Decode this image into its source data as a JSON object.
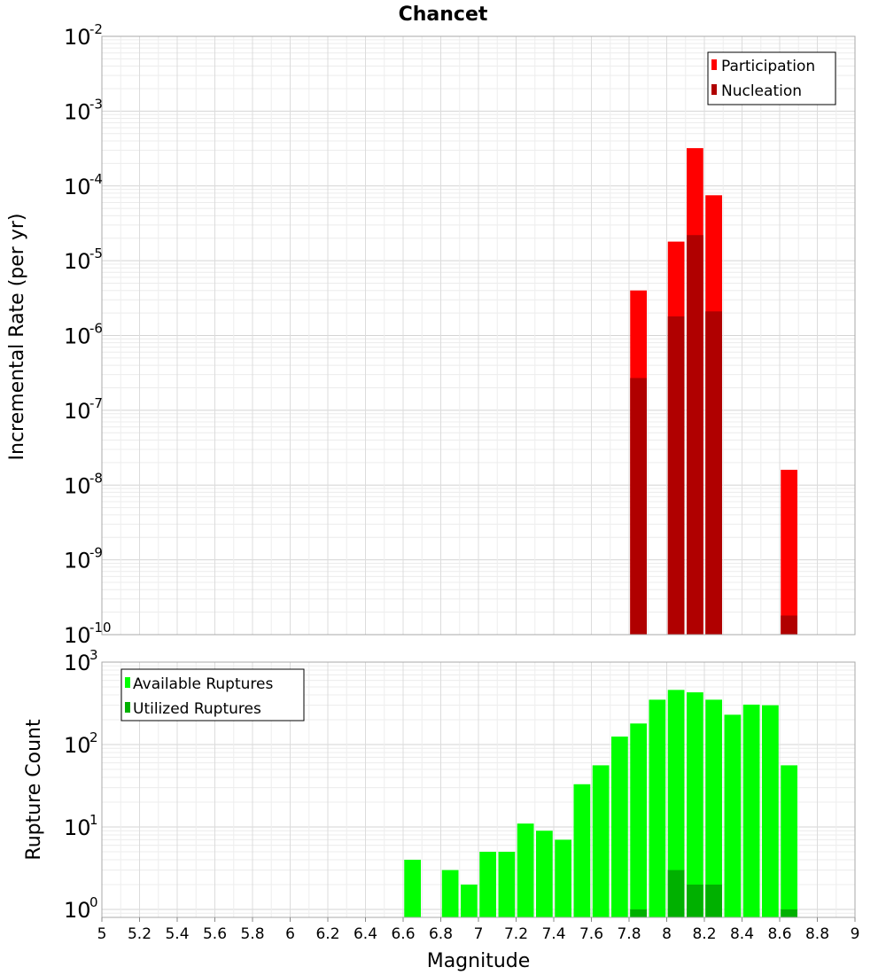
{
  "chart_data": [
    {
      "type": "bar",
      "title": "Chancet",
      "xlabel": "",
      "ylabel": "Incremental Rate (per yr)",
      "yscale": "log",
      "ylim": [
        1e-10,
        0.01
      ],
      "xlim": [
        5,
        9
      ],
      "y_tick_exponents": [
        "-2",
        "-3",
        "-4",
        "-5",
        "-6",
        "-7",
        "-8",
        "-9",
        "-10"
      ],
      "grid": true,
      "legend_position": "top-right",
      "series": [
        {
          "name": "Participation",
          "color": "#ff0000",
          "x": [
            7.85,
            8.05,
            8.15,
            8.25,
            8.65
          ],
          "values": [
            4e-06,
            1.8e-05,
            0.00032,
            7.5e-05,
            1.6e-08
          ]
        },
        {
          "name": "Nucleation",
          "color": "#b00000",
          "x": [
            7.85,
            8.05,
            8.15,
            8.25,
            8.65
          ],
          "values": [
            2.7e-07,
            1.8e-06,
            2.2e-05,
            2.1e-06,
            1.8e-10
          ]
        }
      ]
    },
    {
      "type": "bar",
      "title": "",
      "xlabel": "Magnitude",
      "ylabel": "Rupture Count",
      "yscale": "log",
      "ylim": [
        0.8,
        1000
      ],
      "xlim": [
        5,
        9
      ],
      "y_tick_exponents": [
        "3",
        "2",
        "1",
        "0"
      ],
      "x_ticks": [
        "5",
        "5.2",
        "5.4",
        "5.6",
        "5.8",
        "6",
        "6.2",
        "6.4",
        "6.6",
        "6.8",
        "7",
        "7.2",
        "7.4",
        "7.6",
        "7.8",
        "8",
        "8.2",
        "8.4",
        "8.6",
        "8.8",
        "9"
      ],
      "grid": true,
      "legend_position": "top-left",
      "series": [
        {
          "name": "Available Ruptures",
          "color": "#00ff00",
          "x": [
            6.65,
            6.85,
            6.95,
            7.05,
            7.15,
            7.25,
            7.35,
            7.45,
            7.55,
            7.65,
            7.75,
            7.85,
            7.95,
            8.05,
            8.15,
            8.25,
            8.35,
            8.45,
            8.55,
            8.65
          ],
          "values": [
            4,
            3,
            2,
            5,
            5,
            11,
            9,
            7,
            33,
            56,
            125,
            180,
            350,
            460,
            430,
            350,
            230,
            305,
            300,
            56
          ]
        },
        {
          "name": "Utilized Ruptures",
          "color": "#00b000",
          "x": [
            7.85,
            8.05,
            8.15,
            8.25,
            8.65
          ],
          "values": [
            1,
            3,
            2,
            2,
            1
          ]
        }
      ]
    }
  ]
}
